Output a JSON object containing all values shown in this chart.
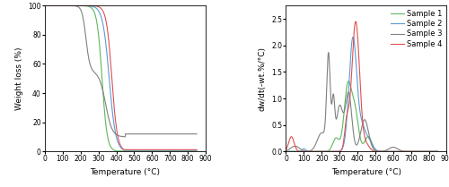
{
  "tga_xlim": [
    0,
    900
  ],
  "tga_ylim": [
    0,
    100
  ],
  "dtg_xlim": [
    0,
    900
  ],
  "dtg_ylim": [
    0,
    2.75
  ],
  "xlabel": "Temperature (°C)",
  "tga_ylabel": "Weight loss (%)",
  "dtg_ylabel": "dw/dt(-wt.%/°C)",
  "legend_labels": [
    "Sample 1",
    "Sample 2",
    "Sample 3",
    "Sample 4"
  ],
  "colors": [
    "#5cb85c",
    "#5b9bd5",
    "#808080",
    "#e05050"
  ],
  "lw": 0.8,
  "tick_fontsize": 5.5,
  "label_fontsize": 6.5,
  "legend_fontsize": 6.0
}
